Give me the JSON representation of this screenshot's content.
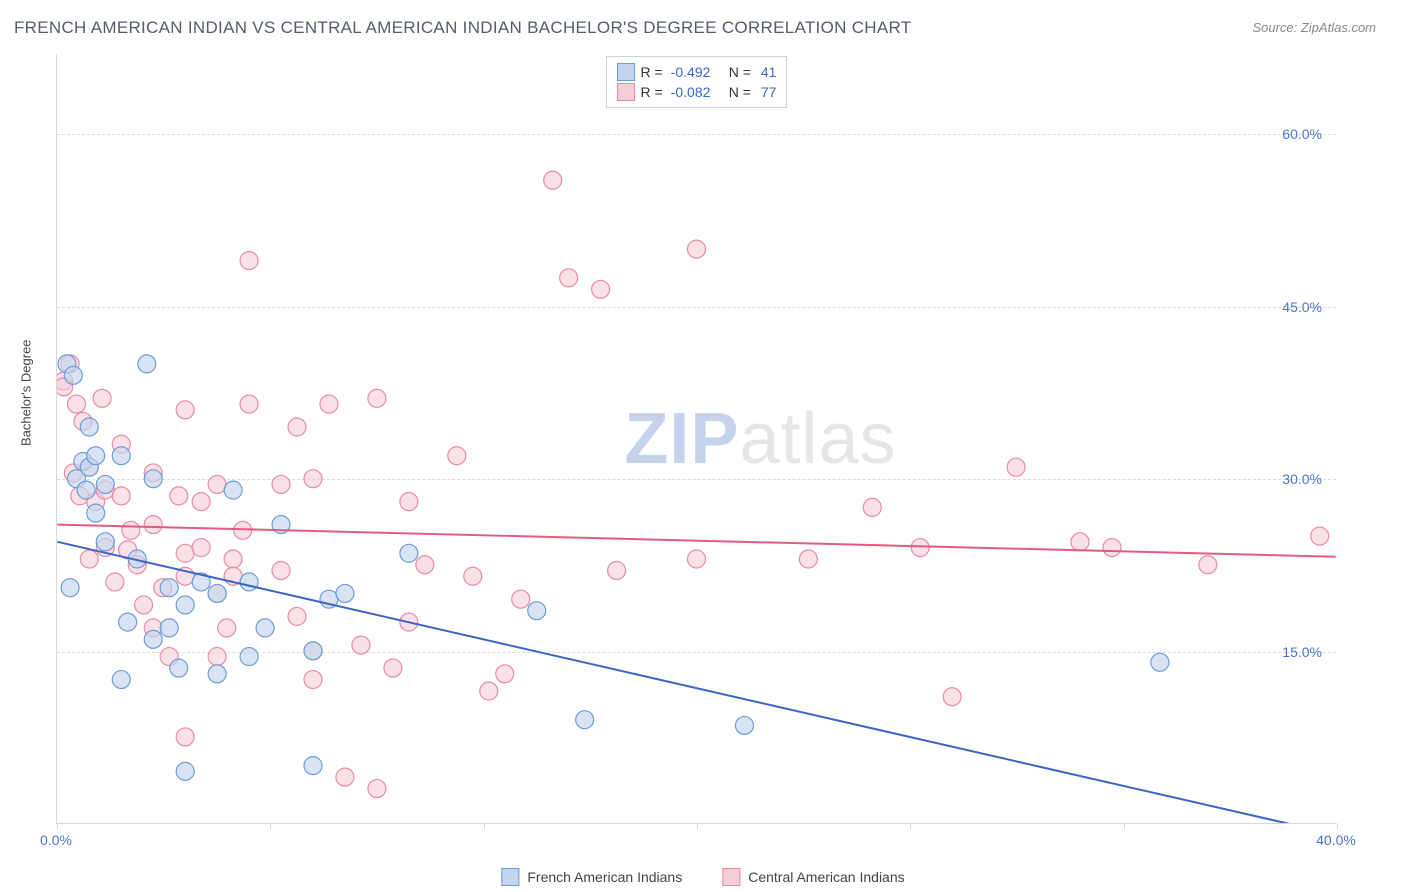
{
  "title": "FRENCH AMERICAN INDIAN VS CENTRAL AMERICAN INDIAN BACHELOR'S DEGREE CORRELATION CHART",
  "source": "Source: ZipAtlas.com",
  "ylabel": "Bachelor's Degree",
  "watermark_bold": "ZIP",
  "watermark_rest": "atlas",
  "chart": {
    "type": "scatter-with-regression",
    "background_color": "#ffffff",
    "grid_color": "#dcdcdc",
    "axis_color": "#d8d8d8",
    "xlim": [
      0,
      40
    ],
    "ylim": [
      0,
      67
    ],
    "xticks": [
      0,
      6.67,
      13.33,
      20,
      26.67,
      33.33,
      40
    ],
    "xtick_labels": {
      "0": "0.0%",
      "40": "40.0%"
    },
    "yticks": [
      15,
      30,
      45,
      60
    ],
    "ytick_labels": {
      "15": "15.0%",
      "30": "30.0%",
      "45": "45.0%",
      "60": "60.0%"
    },
    "point_radius": 9,
    "point_stroke_width": 1.2,
    "line_width": 2,
    "series": [
      {
        "name": "French American Indians",
        "fill": "#c3d5ef",
        "stroke": "#6f9bd8",
        "fill_opacity": 0.65,
        "R": "-0.492",
        "N": "41",
        "regression": {
          "x1": 0,
          "y1": 24.5,
          "x2": 40,
          "y2": -1.0,
          "color": "#3b66c4"
        },
        "points": [
          [
            0.3,
            40.0
          ],
          [
            0.4,
            20.5
          ],
          [
            0.5,
            39.0
          ],
          [
            0.6,
            30.0
          ],
          [
            0.8,
            31.5
          ],
          [
            0.9,
            29.0
          ],
          [
            1.0,
            34.5
          ],
          [
            1.0,
            31.0
          ],
          [
            1.2,
            32.0
          ],
          [
            1.2,
            27.0
          ],
          [
            1.5,
            29.5
          ],
          [
            1.5,
            24.5
          ],
          [
            2.0,
            32.0
          ],
          [
            2.0,
            12.5
          ],
          [
            2.2,
            17.5
          ],
          [
            2.8,
            40.0
          ],
          [
            2.5,
            23.0
          ],
          [
            3.0,
            30.0
          ],
          [
            3.0,
            16.0
          ],
          [
            3.5,
            20.5
          ],
          [
            3.5,
            17.0
          ],
          [
            3.8,
            13.5
          ],
          [
            4.0,
            4.5
          ],
          [
            4.0,
            19.0
          ],
          [
            4.5,
            21.0
          ],
          [
            5.0,
            20.0
          ],
          [
            5.0,
            13.0
          ],
          [
            5.5,
            29.0
          ],
          [
            6.0,
            21.0
          ],
          [
            6.0,
            14.5
          ],
          [
            6.5,
            17.0
          ],
          [
            7.0,
            26.0
          ],
          [
            8.0,
            5.0
          ],
          [
            8.0,
            15.0
          ],
          [
            8.5,
            19.5
          ],
          [
            9.0,
            20.0
          ],
          [
            11.0,
            23.5
          ],
          [
            15.0,
            18.5
          ],
          [
            16.5,
            9.0
          ],
          [
            21.5,
            8.5
          ],
          [
            34.5,
            14.0
          ]
        ]
      },
      {
        "name": "Central American Indians",
        "fill": "#f7cdd8",
        "stroke": "#e88aa3",
        "fill_opacity": 0.6,
        "R": "-0.082",
        "N": "77",
        "regression": {
          "x1": 0,
          "y1": 26.0,
          "x2": 40,
          "y2": 23.2,
          "color": "#e35a7f"
        },
        "points": [
          [
            0.2,
            38.5
          ],
          [
            0.2,
            38.0
          ],
          [
            0.4,
            40.0
          ],
          [
            0.5,
            30.5
          ],
          [
            0.6,
            36.5
          ],
          [
            0.7,
            28.5
          ],
          [
            0.8,
            35.0
          ],
          [
            1.0,
            31.0
          ],
          [
            1.0,
            23.0
          ],
          [
            1.2,
            28.0
          ],
          [
            1.4,
            37.0
          ],
          [
            1.5,
            29.0
          ],
          [
            1.5,
            24.0
          ],
          [
            1.8,
            21.0
          ],
          [
            2.0,
            28.5
          ],
          [
            2.0,
            33.0
          ],
          [
            2.2,
            23.8
          ],
          [
            2.3,
            25.5
          ],
          [
            2.5,
            22.5
          ],
          [
            2.7,
            19.0
          ],
          [
            3.0,
            30.5
          ],
          [
            3.0,
            26.0
          ],
          [
            3.0,
            17.0
          ],
          [
            3.3,
            20.5
          ],
          [
            3.5,
            14.5
          ],
          [
            3.8,
            28.5
          ],
          [
            4.0,
            36.0
          ],
          [
            4.0,
            21.5
          ],
          [
            4.0,
            23.5
          ],
          [
            4.0,
            7.5
          ],
          [
            4.5,
            24.0
          ],
          [
            4.5,
            28.0
          ],
          [
            5.0,
            20.0
          ],
          [
            5.0,
            29.5
          ],
          [
            5.0,
            14.5
          ],
          [
            5.3,
            17.0
          ],
          [
            5.5,
            23.0
          ],
          [
            5.5,
            21.5
          ],
          [
            5.8,
            25.5
          ],
          [
            6.0,
            49.0
          ],
          [
            6.0,
            36.5
          ],
          [
            7.0,
            29.5
          ],
          [
            7.0,
            22.0
          ],
          [
            7.5,
            34.5
          ],
          [
            7.5,
            18.0
          ],
          [
            8.0,
            30.0
          ],
          [
            8.0,
            15.0
          ],
          [
            8.0,
            12.5
          ],
          [
            8.5,
            36.5
          ],
          [
            9.0,
            4.0
          ],
          [
            9.5,
            15.5
          ],
          [
            10.0,
            3.0
          ],
          [
            10.0,
            37.0
          ],
          [
            10.5,
            13.5
          ],
          [
            11.0,
            28.0
          ],
          [
            11.0,
            17.5
          ],
          [
            11.5,
            22.5
          ],
          [
            12.5,
            32.0
          ],
          [
            13.0,
            21.5
          ],
          [
            13.5,
            11.5
          ],
          [
            14.0,
            13.0
          ],
          [
            14.5,
            19.5
          ],
          [
            15.5,
            56.0
          ],
          [
            16.0,
            47.5
          ],
          [
            17.0,
            46.5
          ],
          [
            17.5,
            22.0
          ],
          [
            20.0,
            23.0
          ],
          [
            20.0,
            50.0
          ],
          [
            23.5,
            23.0
          ],
          [
            25.5,
            27.5
          ],
          [
            27.0,
            24.0
          ],
          [
            28.0,
            11.0
          ],
          [
            30.0,
            31.0
          ],
          [
            32.0,
            24.5
          ],
          [
            33.0,
            24.0
          ],
          [
            36.0,
            22.5
          ],
          [
            39.5,
            25.0
          ]
        ]
      }
    ]
  },
  "stats_labels": {
    "R": "R =",
    "N": "N ="
  },
  "colors": {
    "title": "#555c6e",
    "source": "#888888",
    "tick_label": "#4a74c9"
  }
}
